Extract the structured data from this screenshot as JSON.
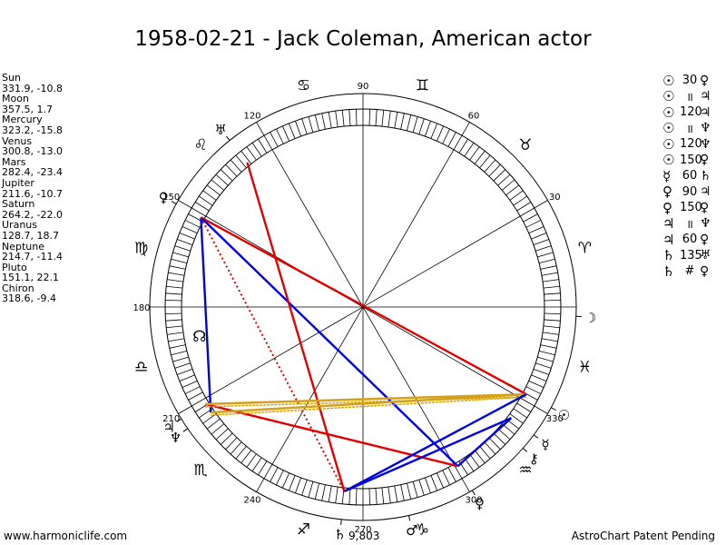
{
  "title": "1958-02-21 - Jack Coleman, American actor",
  "planets": [
    {
      "name": "Sun",
      "pos": "331.9, -10.8",
      "glyph": "☉",
      "lon": 331.9
    },
    {
      "name": "Moon",
      "pos": "357.5, 1.7",
      "glyph": "☽",
      "lon": 357.5
    },
    {
      "name": "Mercury",
      "pos": "323.2, -15.8",
      "glyph": "☿",
      "lon": 323.2
    },
    {
      "name": "Venus",
      "pos": "300.8, -13.0",
      "glyph": "♀",
      "lon": 300.8
    },
    {
      "name": "Mars",
      "pos": "282.4, -23.4",
      "glyph": "♂",
      "lon": 282.4
    },
    {
      "name": "Jupiter",
      "pos": "211.6, -10.7",
      "glyph": "♃",
      "lon": 211.6
    },
    {
      "name": "Saturn",
      "pos": "264.2, -22.0",
      "glyph": "♄",
      "lon": 264.2
    },
    {
      "name": "Uranus",
      "pos": "128.7, 18.7",
      "glyph": "♅",
      "lon": 128.7
    },
    {
      "name": "Neptune",
      "pos": "214.7, -11.4",
      "glyph": "♆",
      "lon": 214.7
    },
    {
      "name": "Pluto",
      "pos": "151.1, 22.1",
      "glyph": "♀",
      "lon": 151.1
    },
    {
      "name": "Chiron",
      "pos": "318.6, -9.4",
      "glyph": "⚷",
      "lon": 318.6
    }
  ],
  "aspects": [
    {
      "a": "☉",
      "sym": "30",
      "b": "♀"
    },
    {
      "a": "☉",
      "sym": "॥",
      "b": "♃"
    },
    {
      "a": "☉",
      "sym": "120",
      "b": "♃"
    },
    {
      "a": "☉",
      "sym": "॥",
      "b": "♆"
    },
    {
      "a": "☉",
      "sym": "120",
      "b": "♆"
    },
    {
      "a": "☉",
      "sym": "150",
      "b": "♀"
    },
    {
      "a": "☿",
      "sym": "60",
      "b": "♄"
    },
    {
      "a": "♀",
      "sym": "90",
      "b": "♃"
    },
    {
      "a": "♀",
      "sym": "150",
      "b": "♀"
    },
    {
      "a": "♃",
      "sym": "॥",
      "b": "♆"
    },
    {
      "a": "♃",
      "sym": "60",
      "b": "♀"
    },
    {
      "a": "♄",
      "sym": "135",
      "b": "♅"
    },
    {
      "a": "♄",
      "sym": "#",
      "b": "♀"
    }
  ],
  "degree_labels": [
    {
      "text": "90",
      "deg": 90
    },
    {
      "text": "60",
      "deg": 60
    },
    {
      "text": "30",
      "deg": 30
    },
    {
      "text": "120",
      "deg": 120
    },
    {
      "text": "150",
      "deg": 150
    },
    {
      "text": "180",
      "deg": 180
    },
    {
      "text": "210",
      "deg": 210
    },
    {
      "text": "240",
      "deg": 240
    },
    {
      "text": "270",
      "deg": 270
    },
    {
      "text": "300",
      "deg": 300
    },
    {
      "text": "330",
      "deg": 330
    }
  ],
  "extra_label": "9,803",
  "zodiac": [
    {
      "glyph": "♈",
      "deg": 15
    },
    {
      "glyph": "♉",
      "deg": 45
    },
    {
      "glyph": "♊",
      "deg": 75
    },
    {
      "glyph": "♋",
      "deg": 105
    },
    {
      "glyph": "♌",
      "deg": 135
    },
    {
      "glyph": "♍",
      "deg": 165
    },
    {
      "glyph": "♎",
      "deg": 195
    },
    {
      "glyph": "♏",
      "deg": 225
    },
    {
      "glyph": "♐",
      "deg": 255
    },
    {
      "glyph": "♑",
      "deg": 285
    },
    {
      "glyph": "♒",
      "deg": 315
    },
    {
      "glyph": "♓",
      "deg": 345
    }
  ],
  "nodes": [
    {
      "glyph": "☊",
      "deg": 190
    }
  ],
  "colors": {
    "red": "#e00000",
    "blue": "#0000e0",
    "gold": "#d4a017"
  },
  "aspect_lines": [
    {
      "from": 151.1,
      "to": 331.9,
      "color": "red"
    },
    {
      "from": 151.1,
      "to": 300.8,
      "color": "blue"
    },
    {
      "from": 151.1,
      "to": 214.7,
      "color": "blue"
    },
    {
      "from": 151.1,
      "to": 264.2,
      "color": "red",
      "dotted": true
    },
    {
      "from": 128.7,
      "to": 264.2,
      "color": "red"
    },
    {
      "from": 211.6,
      "to": 300.8,
      "color": "red"
    },
    {
      "from": 211.6,
      "to": 331.9,
      "color": "gold"
    },
    {
      "from": 214.7,
      "to": 331.9,
      "color": "gold"
    },
    {
      "from": 323.2,
      "to": 264.2,
      "color": "blue"
    },
    {
      "from": 331.9,
      "to": 264.2,
      "color": "blue"
    },
    {
      "from": 323.2,
      "to": 300.8,
      "color": "blue"
    }
  ],
  "footer": {
    "left": "www.harmoniclife.com",
    "right": "AstroChart Patent Pending"
  }
}
